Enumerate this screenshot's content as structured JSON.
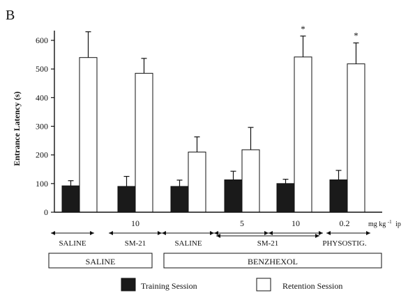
{
  "chart_data": {
    "type": "bar",
    "panel_label": "B",
    "ylabel": "Entrance Latency (s)",
    "ylim": [
      0,
      600
    ],
    "yticks": [
      0,
      100,
      200,
      300,
      400,
      500,
      600
    ],
    "series": [
      {
        "name": "Training Session",
        "color": "#1a1a1a",
        "values": [
          92,
          90,
          90,
          113,
          100,
          113
        ],
        "errors": [
          18,
          35,
          22,
          30,
          15,
          33
        ]
      },
      {
        "name": "Retention Session",
        "color": "#ffffff",
        "values": [
          540,
          485,
          210,
          218,
          542,
          518
        ],
        "errors": [
          90,
          52,
          53,
          78,
          73,
          73
        ]
      }
    ],
    "significance": [
      "",
      "",
      "",
      "",
      "*",
      "*"
    ],
    "groups": [
      {
        "dose": "",
        "label": "SALINE"
      },
      {
        "dose": "10",
        "label": "SM-21"
      },
      {
        "dose": "",
        "label": "SALINE"
      },
      {
        "dose": "5",
        "label": ""
      },
      {
        "dose": "10",
        "label": ""
      },
      {
        "dose": "0.2",
        "label": "PHYSOSTIG."
      }
    ],
    "shared_label": "SM-21",
    "dose_unit": "mg kg",
    "dose_unit_sup": "-1",
    "dose_unit_suffix": "ip",
    "pretreatment_boxes": [
      "SALINE",
      "BENZHEXOL"
    ],
    "legend": {
      "placement": "bottom",
      "entries": [
        "Training Session",
        "Retention Session"
      ]
    }
  }
}
